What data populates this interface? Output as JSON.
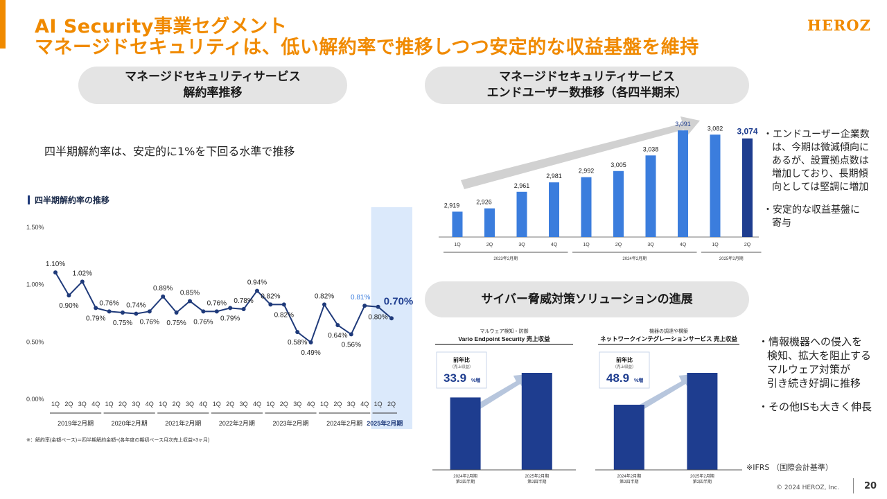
{
  "header": {
    "title_line1": "AI Security事業セグメント",
    "title_line2": "マネージドセキュリティは、低い解約率で推移しつつ安定的な収益基盤を維持",
    "logo": "HEROZ"
  },
  "left_panel": {
    "pill_line1": "マネージドセキュリティサービス",
    "pill_line2": "解約率推移",
    "note": "四半期解約率は、安定的に1%を下回る水準で推移"
  },
  "right_top_panel": {
    "pill_line1": "マネージドセキュリティサービス",
    "pill_line2": "エンドユーザー数推移（各四半期末）",
    "bullets": [
      [
        "・エンドユーザー企業数",
        "は、今期は微減傾向に",
        "あるが、設置拠点数は",
        "増加しており、長期傾",
        "向としては堅調に増加"
      ],
      [
        "・安定的な収益基盤に",
        "寄与"
      ]
    ]
  },
  "right_bottom_panel": {
    "pill": "サイバー脅威対策ソリューションの進展",
    "bullets": [
      [
        "・情報機器への侵入を",
        "検知、拡大を阻止する",
        "マルウェア対策が",
        "引き続き好調に推移"
      ],
      [
        "・その他ISも大きく伸長"
      ]
    ],
    "ifrs_note": "※IFRS （国際会計基準）"
  },
  "footer": {
    "copyright": "© 2024 HEROZ, Inc.",
    "page": "20"
  },
  "colors": {
    "accent": "#f08a00",
    "navy": "#1f3a7a",
    "blue": "#3b7ddd",
    "dark_blue": "#1e3d8f",
    "highlight": "#dbe9fb"
  },
  "chart_data": [
    {
      "type": "line",
      "title": "四半期解約率の推移",
      "categories": [
        "1Q",
        "2Q",
        "3Q",
        "4Q",
        "1Q",
        "2Q",
        "3Q",
        "4Q",
        "1Q",
        "2Q",
        "3Q",
        "4Q",
        "1Q",
        "2Q",
        "3Q",
        "4Q",
        "1Q",
        "2Q",
        "3Q",
        "4Q",
        "1Q",
        "2Q",
        "3Q",
        "4Q",
        "1Q",
        "2Q"
      ],
      "groups": [
        "2019年2月期",
        "2020年2月期",
        "2021年2月期",
        "2022年2月期",
        "2023年2月期",
        "2024年2月期",
        "2025年2月期"
      ],
      "values": [
        1.1,
        0.9,
        1.02,
        0.79,
        0.76,
        0.75,
        0.74,
        0.76,
        0.89,
        0.75,
        0.85,
        0.76,
        0.76,
        0.79,
        0.78,
        0.94,
        0.82,
        0.82,
        0.58,
        0.49,
        0.82,
        0.64,
        0.56,
        0.81,
        0.8,
        0.7
      ],
      "labels": [
        "1.10%",
        "0.90%",
        "1.02%",
        "0.79%",
        "0.76%",
        "0.75%",
        "0.74%",
        "0.76%",
        "0.89%",
        "0.75%",
        "0.85%",
        "0.76%",
        "0.76%",
        "0.79%",
        "0.78%",
        "0.94%",
        "0.82%",
        "0.82%",
        "0.58%",
        "0.49%",
        "0.82%",
        "0.64%",
        "0.56%",
        "0.81%",
        "0.80%",
        "0.70%"
      ],
      "ylim": [
        0,
        1.5
      ],
      "yticks": [
        "0.00%",
        "0.50%",
        "1.00%",
        "1.50%"
      ],
      "highlight_group": "2025年2月期",
      "footnote": "※：解約率(金額ベース)＝四半期解約金額÷(各年度の期初ベース月次売上収益×3ヶ月)"
    },
    {
      "type": "bar",
      "title": "エンドユーザー数推移",
      "categories": [
        "1Q",
        "2Q",
        "3Q",
        "4Q",
        "1Q",
        "2Q",
        "3Q",
        "4Q",
        "1Q",
        "2Q"
      ],
      "groups": [
        "2023年2月期",
        "2024年2月期",
        "2025年2月期"
      ],
      "values": [
        2919,
        2926,
        2961,
        2981,
        2992,
        3005,
        3038,
        3091,
        3082,
        3074
      ],
      "labels": [
        "2,919",
        "2,926",
        "2,961",
        "2,981",
        "2,992",
        "3,005",
        "3,038",
        "3,091",
        "3,082",
        "3,074"
      ]
    },
    {
      "type": "bar",
      "supertitle": "マルウェア検知・防御",
      "title": "Vario Endpoint Security 売上収益",
      "badge_title": "前年比",
      "badge_sub": "（売上収益）",
      "badge_value": "33.9",
      "badge_unit": "%増",
      "categories": [
        "2024年2月期 第2四半期",
        "2025年2月期 第2四半期"
      ],
      "cat_line1": [
        "2024年2月期",
        "2025年2月期"
      ],
      "cat_line2": [
        "第2四半期",
        "第2四半期"
      ],
      "growth_pct": 33.9
    },
    {
      "type": "bar",
      "supertitle": "機器の調達や構築",
      "title": "ネットワークインテグレーションサービス 売上収益",
      "badge_title": "前年比",
      "badge_sub": "（売上収益）",
      "badge_value": "48.9",
      "badge_unit": "%増",
      "categories": [
        "2024年2月期 第2四半期",
        "2025年2月期 第2四半期"
      ],
      "cat_line1": [
        "2024年2月期",
        "2025年2月期"
      ],
      "cat_line2": [
        "第2四半期",
        "第2四半期"
      ],
      "growth_pct": 48.9
    }
  ]
}
